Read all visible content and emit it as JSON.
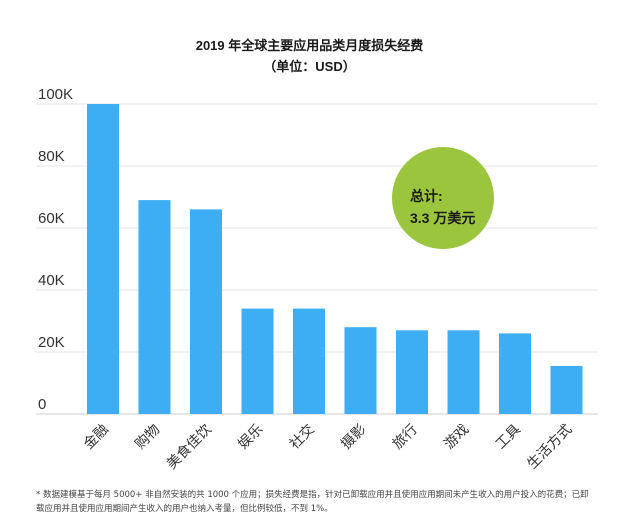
{
  "chart_data": {
    "type": "bar",
    "title": "2019 年全球主要应用品类月度损失经费",
    "subtitle": "（单位：USD）",
    "categories": [
      "金融",
      "购物",
      "美食佳饮",
      "娱乐",
      "社交",
      "摄影",
      "旅行",
      "游戏",
      "工具",
      "生活方式"
    ],
    "values": [
      100000,
      69000,
      66000,
      34000,
      34000,
      28000,
      27000,
      27000,
      26000,
      15500
    ],
    "ylim": [
      0,
      100000
    ],
    "yticks": [
      0,
      20000,
      40000,
      60000,
      80000,
      100000
    ],
    "ytick_labels": [
      "0",
      "20K",
      "40K",
      "60K",
      "80K",
      "100K"
    ],
    "xlabel": "",
    "ylabel": "",
    "grid": true,
    "bar_color": "#3eaef4"
  },
  "badge": {
    "label": "总计:",
    "value": "3.3 万美元",
    "color": "#9bc53d"
  },
  "footnote": "* 数据建模基于每月 5000+ 非自然安装的共 1000 个应用；损失经费是指，针对已卸载应用并且使用应用期间未产生收入的用户投入的花费；已卸载应用并且使用应用期间产生收入的用户也纳入考量，但比例较低，不到 1%。"
}
